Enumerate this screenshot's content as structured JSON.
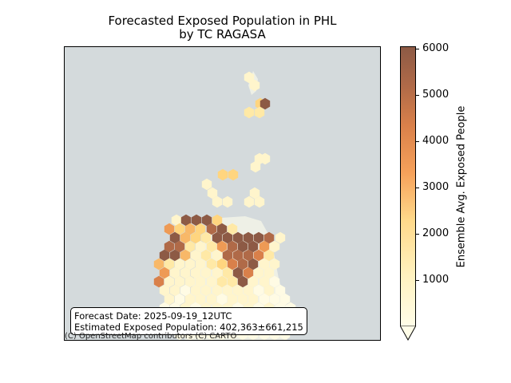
{
  "title_line1": "Forecasted Exposed Population in PHL",
  "title_line2": "by TC RAGASA",
  "info": {
    "forecast_date": "Forecast Date: 2025-09-19_12UTC",
    "estimated_population": "Estimated Exposed Population: 402,363±661,215"
  },
  "attribution": "(C) OpenStreetMap contributors (C) CARTO",
  "colorbar": {
    "label": "Ensemble Avg. Exposed People",
    "ticks": [
      "1000",
      "2000",
      "3000",
      "4000",
      "5000",
      "6000"
    ],
    "min": 0,
    "max": 6050,
    "extend": "min",
    "colors": [
      "#fffde8",
      "#fff2c0",
      "#ffd98a",
      "#f6a15a",
      "#d9804a",
      "#b06a48",
      "#8d5a45"
    ]
  },
  "colors": {
    "ocean": "#d4dadc",
    "land": "#f2f0e8"
  }
}
